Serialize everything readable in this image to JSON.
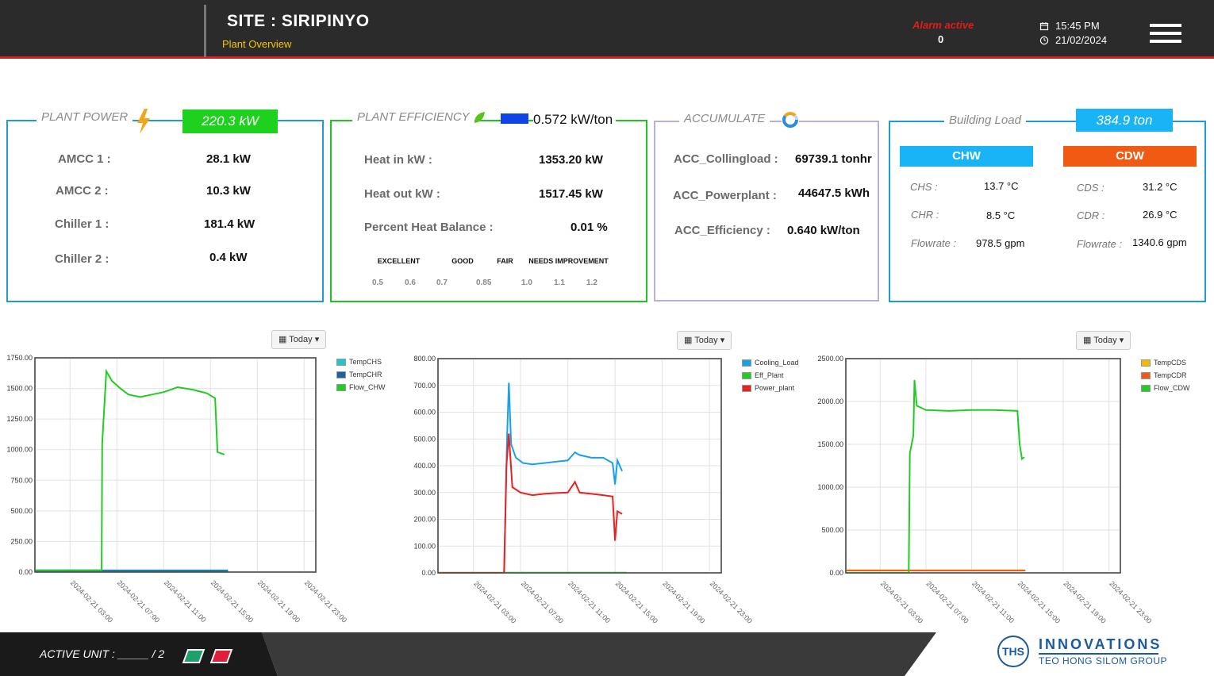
{
  "header": {
    "site_title": "SITE : SIRIPINYO",
    "subtitle": "Plant Overview",
    "alarm_label": "Alarm active",
    "alarm_count": "0",
    "time": "15:45 PM",
    "date": "21/02/2024"
  },
  "plant_power": {
    "title": "PLANT POWER",
    "total": "220.3 kW",
    "rows": [
      {
        "label": "AMCC 1 :",
        "value": "28.1 kW"
      },
      {
        "label": "AMCC 2 :",
        "value": "10.3 kW"
      },
      {
        "label": "Chiller 1 :",
        "value": "181.4 kW"
      },
      {
        "label": "Chiller 2 :",
        "value": "0.4 kW"
      }
    ]
  },
  "plant_efficiency": {
    "title": "PLANT EFFICIENCY",
    "value": "0.572 kW/ton",
    "rows": [
      {
        "label": "Heat in kW :",
        "value": "1353.20 kW"
      },
      {
        "label": "Heat out kW :",
        "value": "1517.45 kW"
      },
      {
        "label": "Percent Heat Balance :",
        "value": "0.01 %"
      }
    ],
    "scale": [
      {
        "label": "EXCELLENT",
        "color": "#1010e8"
      },
      {
        "label": "GOOD",
        "color": "#18d318"
      },
      {
        "label": "FAIR",
        "color": "#f7f70f"
      },
      {
        "label": "NEEDS IMPROVEMENT",
        "color": "#e81717"
      }
    ],
    "ticks": [
      "0.5",
      "0.6",
      "0.7",
      "0.85",
      "1.0",
      "1.1",
      "1.2"
    ]
  },
  "accumulate": {
    "title": "ACCUMULATE",
    "rows": [
      {
        "label": "ACC_Collingload :",
        "value": "69739.1 tonhr"
      },
      {
        "label": "ACC_Powerplant :",
        "value": "44647.5 kWh"
      },
      {
        "label": "ACC_Efficiency :",
        "value": "0.640 kW/ton"
      }
    ]
  },
  "building_load": {
    "title": "Building Load",
    "total": "384.9 ton",
    "chw": {
      "header": "CHW",
      "rows": [
        {
          "label": "CHS :",
          "value": "13.7 °C"
        },
        {
          "label": "CHR :",
          "value": "8.5 °C"
        },
        {
          "label": "Flowrate :",
          "value": "978.5 gpm"
        }
      ]
    },
    "cdw": {
      "header": "CDW",
      "rows": [
        {
          "label": "CDS :",
          "value": "31.2 °C"
        },
        {
          "label": "CDR :",
          "value": "26.9 °C"
        },
        {
          "label": "Flowrate :",
          "value": "1340.6 gpm"
        }
      ]
    }
  },
  "range_button": "Today",
  "chart_data": [
    {
      "type": "line",
      "x_labels": [
        "2024-02-21 03:00",
        "2024-02-21 07:00",
        "2024-02-21 11:00",
        "2024-02-21 15:00",
        "2024-02-21 19:00",
        "2024-02-21 23:00"
      ],
      "x_hours": [
        3,
        7,
        11,
        15,
        19,
        23
      ],
      "xlim": [
        0,
        24
      ],
      "ylim": [
        0,
        1750
      ],
      "y_ticks": [
        "0.00",
        "250.00",
        "500.00",
        "750.00",
        "1000.00",
        "1250.00",
        "1500.00",
        "1750.00"
      ],
      "series": [
        {
          "name": "TempCHS",
          "color": "#1ec8c8",
          "points": [
            [
              0,
              14
            ],
            [
              16.5,
              14
            ]
          ]
        },
        {
          "name": "TempCHR",
          "color": "#2060a0",
          "points": [
            [
              0,
              9
            ],
            [
              16.5,
              9
            ]
          ]
        },
        {
          "name": "Flow_CHW",
          "color": "#22cc22",
          "points": [
            [
              0,
              15
            ],
            [
              5.7,
              15
            ],
            [
              5.75,
              1050
            ],
            [
              5.9,
              1300
            ],
            [
              6.1,
              1640
            ],
            [
              6.6,
              1560
            ],
            [
              7.3,
              1500
            ],
            [
              8,
              1450
            ],
            [
              9,
              1430
            ],
            [
              10,
              1450
            ],
            [
              11,
              1470
            ],
            [
              12.2,
              1510
            ],
            [
              13.5,
              1490
            ],
            [
              14.7,
              1460
            ],
            [
              15.4,
              1420
            ],
            [
              15.6,
              980
            ],
            [
              16.2,
              960
            ]
          ]
        }
      ]
    },
    {
      "type": "line",
      "x_labels": [
        "2024-02-21 03:00",
        "2024-02-21 07:00",
        "2024-02-21 11:00",
        "2024-02-21 15:00",
        "2024-02-21 19:00",
        "2024-02-21 23:00"
      ],
      "x_hours": [
        3,
        7,
        11,
        15,
        19,
        23
      ],
      "xlim": [
        0,
        24
      ],
      "ylim": [
        0,
        800
      ],
      "y_ticks": [
        "0.00",
        "100.00",
        "200.00",
        "300.00",
        "400.00",
        "500.00",
        "600.00",
        "700.00",
        "800.00"
      ],
      "series": [
        {
          "name": "Cooling_Load",
          "color": "#1aa0e6",
          "points": [
            [
              5.6,
              0
            ],
            [
              5.85,
              500
            ],
            [
              6.0,
              710
            ],
            [
              6.2,
              480
            ],
            [
              6.6,
              430
            ],
            [
              7.2,
              410
            ],
            [
              8,
              405
            ],
            [
              9,
              410
            ],
            [
              10,
              415
            ],
            [
              11,
              420
            ],
            [
              11.6,
              450
            ],
            [
              12,
              440
            ],
            [
              13,
              430
            ],
            [
              14,
              430
            ],
            [
              14.8,
              410
            ],
            [
              15.0,
              330
            ],
            [
              15.2,
              420
            ],
            [
              15.6,
              380
            ]
          ]
        },
        {
          "name": "Eff_Plant",
          "color": "#22cc22",
          "points": [
            [
              0,
              1
            ],
            [
              16,
              1
            ]
          ]
        },
        {
          "name": "Power_plant",
          "color": "#e62222",
          "points": [
            [
              0,
              0
            ],
            [
              5.6,
              0
            ],
            [
              5.8,
              400
            ],
            [
              6.0,
              520
            ],
            [
              6.3,
              320
            ],
            [
              7.0,
              300
            ],
            [
              8,
              290
            ],
            [
              9,
              295
            ],
            [
              10,
              298
            ],
            [
              11,
              300
            ],
            [
              11.6,
              340
            ],
            [
              12,
              300
            ],
            [
              13,
              295
            ],
            [
              14,
              290
            ],
            [
              14.8,
              285
            ],
            [
              15.0,
              120
            ],
            [
              15.2,
              230
            ],
            [
              15.6,
              220
            ]
          ]
        }
      ]
    },
    {
      "type": "line",
      "x_labels": [
        "2024-02-21 03:00",
        "2024-02-21 07:00",
        "2024-02-21 11:00",
        "2024-02-21 15:00",
        "2024-02-21 19:00",
        "2024-02-21 23:00"
      ],
      "x_hours": [
        3,
        7,
        11,
        15,
        19,
        23
      ],
      "xlim": [
        0,
        24
      ],
      "ylim": [
        0,
        2500
      ],
      "y_ticks": [
        "0.00",
        "500.00",
        "1000.00",
        "1500.00",
        "2000.00",
        "2500.00"
      ],
      "series": [
        {
          "name": "TempCDS",
          "color": "#f5b800",
          "points": [
            [
              0,
              31
            ],
            [
              15.7,
              31
            ]
          ]
        },
        {
          "name": "TempCDR",
          "color": "#f05a1a",
          "points": [
            [
              0,
              27
            ],
            [
              15.7,
              27
            ]
          ]
        },
        {
          "name": "Flow_CDW",
          "color": "#22cc22",
          "points": [
            [
              0,
              0
            ],
            [
              5.5,
              0
            ],
            [
              5.6,
              1400
            ],
            [
              5.9,
              1600
            ],
            [
              6.0,
              2250
            ],
            [
              6.2,
              1950
            ],
            [
              7.0,
              1900
            ],
            [
              9,
              1890
            ],
            [
              11,
              1900
            ],
            [
              13,
              1900
            ],
            [
              15.0,
              1890
            ],
            [
              15.2,
              1500
            ],
            [
              15.4,
              1330
            ],
            [
              15.6,
              1350
            ]
          ]
        }
      ]
    }
  ],
  "footer": {
    "active_unit": "ACTIVE UNIT : _____ / 2",
    "logo_line1": "INNOVATIONS",
    "logo_line2": "TEO HONG SILOM GROUP",
    "logo_mark": "THS"
  }
}
